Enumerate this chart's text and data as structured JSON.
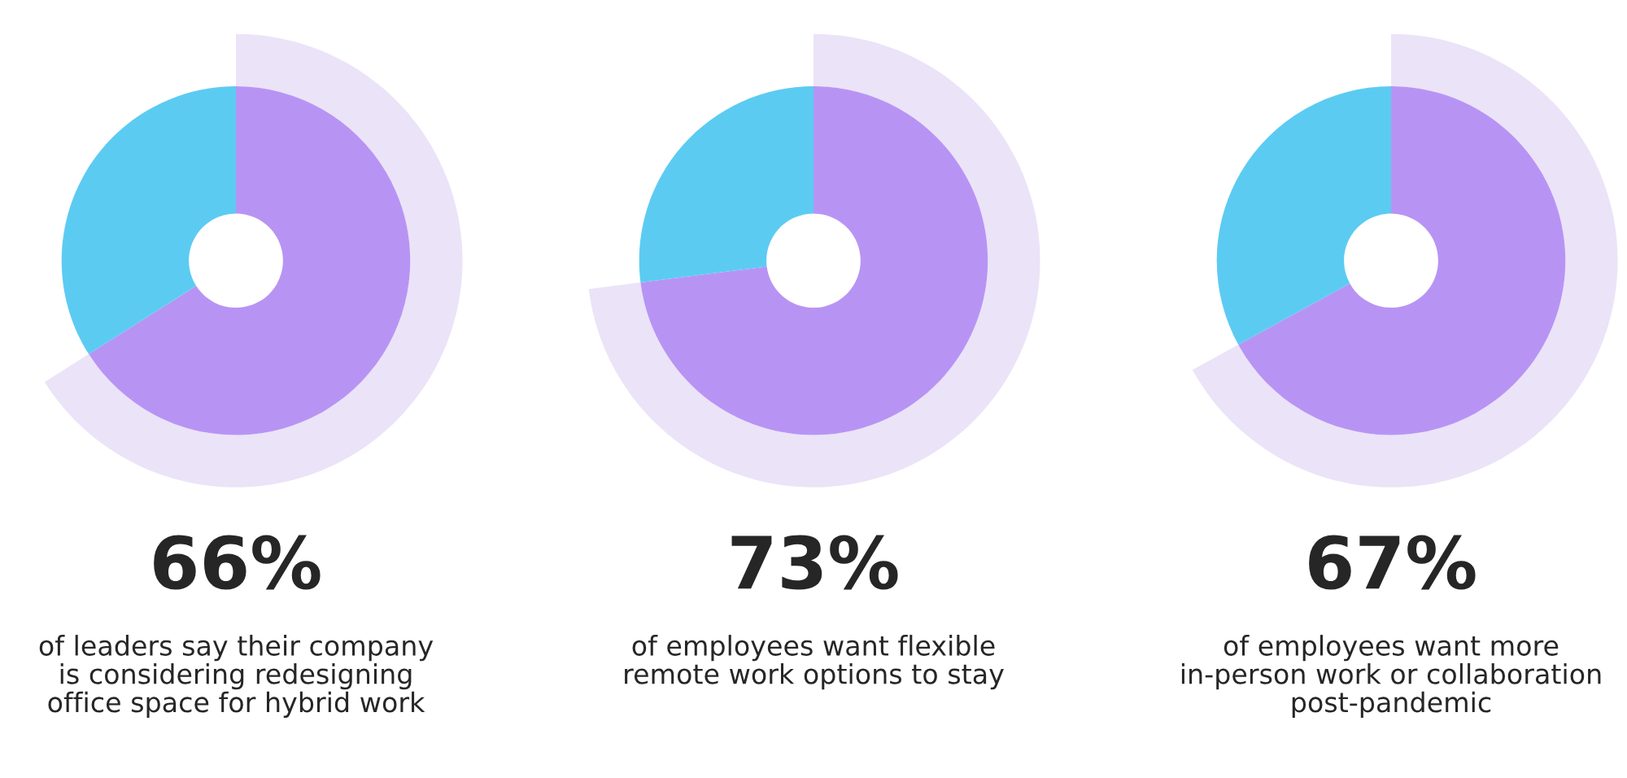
{
  "chart_data": [
    {
      "type": "donut",
      "title": "66%",
      "categories": [
        null,
        null
      ],
      "values": [
        66,
        34
      ],
      "colors": [
        "#b794f4",
        "#5ccbf2"
      ],
      "annotations": [
        "of leaders say their company is considering redesigning office space for hybrid work"
      ]
    },
    {
      "type": "donut",
      "title": "73%",
      "categories": [
        null,
        null
      ],
      "values": [
        73,
        27
      ],
      "colors": [
        "#b794f4",
        "#5ccbf2"
      ],
      "annotations": [
        "of employees want flexible remote work options to stay"
      ]
    },
    {
      "type": "donut",
      "title": "67%",
      "categories": [
        null,
        null
      ],
      "values": [
        67,
        33
      ],
      "colors": [
        "#b794f4",
        "#5ccbf2"
      ],
      "annotations": [
        "of employees want more in-person work or collaboration post-pandemic"
      ]
    }
  ]
}
